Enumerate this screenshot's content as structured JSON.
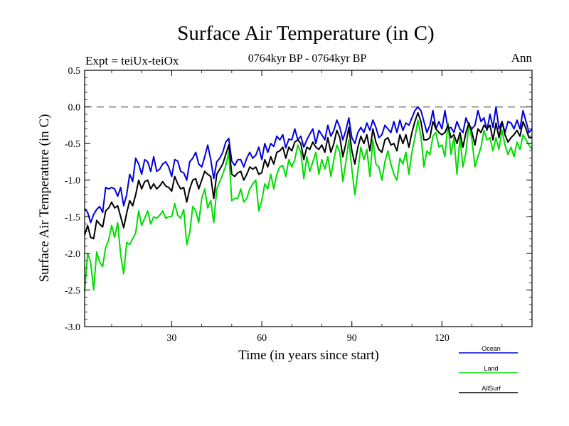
{
  "chart_data": {
    "type": "line",
    "title": "Surface Air Temperature (in C)",
    "subtitle": "0764kyr BP - 0764kyr BP",
    "left_annotation": "Expt = teiUx-teiOx",
    "right_annotation": "Ann",
    "xlabel": "Time (in years since start)",
    "ylabel": "Surface Air Temperature (in C)",
    "xlim": [
      1,
      150
    ],
    "ylim": [
      -3.0,
      0.5
    ],
    "xticks": [
      30,
      60,
      90,
      120
    ],
    "xtick_labels": [
      "30",
      "60",
      "90",
      "120"
    ],
    "yticks": [
      0.5,
      0.0,
      -0.5,
      -1.0,
      -1.5,
      -2.0,
      -2.5,
      -3.0
    ],
    "ytick_labels": [
      "0.5",
      "0.0",
      "-0.5",
      "-1.0",
      "-1.5",
      "-2.0",
      "-2.5",
      "-3.0"
    ],
    "reference_line": 0.0,
    "legend_position": "bottom-right",
    "x": [
      1,
      2,
      3,
      4,
      5,
      6,
      7,
      8,
      9,
      10,
      11,
      12,
      13,
      14,
      15,
      16,
      17,
      18,
      19,
      20,
      21,
      22,
      23,
      24,
      25,
      26,
      27,
      28,
      29,
      30,
      31,
      32,
      33,
      34,
      35,
      36,
      37,
      38,
      39,
      40,
      41,
      42,
      43,
      44,
      45,
      46,
      47,
      48,
      49,
      50,
      51,
      52,
      53,
      54,
      55,
      56,
      57,
      58,
      59,
      60,
      61,
      62,
      63,
      64,
      65,
      66,
      67,
      68,
      69,
      70,
      71,
      72,
      73,
      74,
      75,
      76,
      77,
      78,
      79,
      80,
      81,
      82,
      83,
      84,
      85,
      86,
      87,
      88,
      89,
      90,
      91,
      92,
      93,
      94,
      95,
      96,
      97,
      98,
      99,
      100,
      101,
      102,
      103,
      104,
      105,
      106,
      107,
      108,
      109,
      110,
      111,
      112,
      113,
      114,
      115,
      116,
      117,
      118,
      119,
      120,
      121,
      122,
      123,
      124,
      125,
      126,
      127,
      128,
      129,
      130,
      131,
      132,
      133,
      134,
      135,
      136,
      137,
      138,
      139,
      140,
      141,
      142,
      143,
      144,
      145,
      146,
      147,
      148,
      149,
      150
    ],
    "series": [
      {
        "name": "Ocean",
        "color": "#0000dd",
        "values": [
          -1.39,
          -1.44,
          -1.58,
          -1.47,
          -1.4,
          -1.36,
          -1.44,
          -1.1,
          -1.12,
          -1.1,
          -1.12,
          -1.22,
          -1.1,
          -1.35,
          -1.2,
          -0.92,
          -1.02,
          -0.7,
          -0.78,
          -0.92,
          -0.72,
          -0.75,
          -0.88,
          -0.68,
          -0.88,
          -0.85,
          -0.78,
          -0.75,
          -0.82,
          -0.95,
          -0.72,
          -0.74,
          -0.88,
          -0.9,
          -1.0,
          -0.75,
          -0.7,
          -0.62,
          -0.78,
          -0.82,
          -0.68,
          -0.52,
          -0.72,
          -0.98,
          -0.75,
          -0.7,
          -0.62,
          -0.48,
          -0.43,
          -0.74,
          -0.8,
          -0.72,
          -0.72,
          -0.82,
          -0.7,
          -0.62,
          -0.7,
          -0.66,
          -0.55,
          -0.72,
          -0.5,
          -0.62,
          -0.5,
          -0.54,
          -0.4,
          -0.45,
          -0.38,
          -0.56,
          -0.44,
          -0.45,
          -0.3,
          -0.45,
          -0.4,
          -0.55,
          -0.45,
          -0.37,
          -0.3,
          -0.5,
          -0.32,
          -0.38,
          -0.45,
          -0.25,
          -0.4,
          -0.32,
          -0.18,
          -0.28,
          -0.45,
          -0.32,
          -0.15,
          -0.42,
          -0.5,
          -0.35,
          -0.28,
          -0.35,
          -0.22,
          -0.32,
          -0.18,
          -0.28,
          -0.42,
          -0.38,
          -0.25,
          -0.3,
          -0.35,
          -0.2,
          -0.35,
          -0.18,
          -0.32,
          -0.22,
          -0.25,
          -0.15,
          -0.05,
          0.0,
          -0.05,
          -0.2,
          -0.35,
          -0.25,
          -0.05,
          -0.3,
          -0.2,
          -0.3,
          -0.05,
          -0.3,
          -0.28,
          -0.35,
          -0.2,
          -0.3,
          -0.35,
          -0.15,
          -0.25,
          -0.3,
          -0.25,
          -0.05,
          -0.2,
          -0.15,
          -0.32,
          -0.1,
          -0.28,
          0.0,
          -0.3,
          -0.2,
          -0.35,
          -0.2,
          -0.22,
          -0.3,
          -0.18,
          -0.3,
          -0.05,
          -0.2,
          -0.35,
          -0.3
        ]
      },
      {
        "name": "Land",
        "color": "#00dd00",
        "values": [
          -2.52,
          -2.0,
          -2.12,
          -2.5,
          -1.98,
          -2.12,
          -2.18,
          -1.92,
          -1.82,
          -1.62,
          -1.78,
          -1.58,
          -2.02,
          -2.28,
          -1.85,
          -1.88,
          -1.8,
          -1.72,
          -1.42,
          -1.62,
          -1.52,
          -1.42,
          -1.6,
          -1.5,
          -1.52,
          -1.48,
          -1.42,
          -1.52,
          -1.5,
          -1.5,
          -1.32,
          -1.48,
          -1.52,
          -1.4,
          -1.88,
          -1.72,
          -1.36,
          -1.42,
          -1.58,
          -1.25,
          -1.12,
          -1.38,
          -1.28,
          -1.58,
          -1.12,
          -1.02,
          -0.92,
          -0.8,
          -0.62,
          -1.28,
          -1.25,
          -1.25,
          -1.12,
          -1.3,
          -1.25,
          -1.12,
          -1.05,
          -1.0,
          -1.42,
          -1.28,
          -1.05,
          -1.12,
          -0.92,
          -1.12,
          -0.92,
          -0.82,
          -0.8,
          -0.95,
          -0.72,
          -0.82,
          -0.72,
          -0.52,
          -0.62,
          -0.98,
          -0.68,
          -0.88,
          -0.75,
          -0.62,
          -0.92,
          -0.72,
          -0.85,
          -0.68,
          -0.95,
          -0.72,
          -0.52,
          -0.62,
          -1.02,
          -0.75,
          -0.45,
          -0.85,
          -1.2,
          -0.88,
          -0.55,
          -0.72,
          -0.58,
          -0.95,
          -0.45,
          -0.78,
          -0.82,
          -1.0,
          -0.75,
          -0.6,
          -0.78,
          -0.92,
          -1.0,
          -0.7,
          -0.78,
          -0.62,
          -0.92,
          -0.62,
          -0.42,
          -0.18,
          -0.4,
          -0.82,
          -0.6,
          -0.65,
          -0.4,
          -0.35,
          -0.55,
          -0.52,
          -0.68,
          -0.22,
          -0.65,
          -0.42,
          -0.92,
          -0.42,
          -0.82,
          -0.62,
          -0.22,
          -0.45,
          -0.82,
          -0.68,
          -0.55,
          -0.32,
          -0.45,
          -0.42,
          -0.6,
          -0.42,
          -0.58,
          -0.32,
          -0.52,
          -0.65,
          -0.55,
          -0.68,
          -0.48,
          -0.58,
          -0.38,
          -0.45,
          -0.52,
          -0.58
        ]
      },
      {
        "name": "AllSurf",
        "color": "#000000",
        "values": [
          -1.75,
          -1.62,
          -1.78,
          -1.8,
          -1.55,
          -1.6,
          -1.64,
          -1.42,
          -1.38,
          -1.3,
          -1.38,
          -1.35,
          -1.5,
          -1.65,
          -1.45,
          -1.28,
          -1.35,
          -1.2,
          -1.0,
          -1.12,
          -1.02,
          -1.0,
          -1.12,
          -1.05,
          -1.12,
          -1.08,
          -1.02,
          -1.08,
          -1.1,
          -1.15,
          -0.95,
          -1.05,
          -1.12,
          -1.1,
          -1.3,
          -1.12,
          -1.0,
          -0.98,
          -1.12,
          -1.0,
          -0.88,
          -0.92,
          -0.95,
          -1.25,
          -0.92,
          -0.85,
          -0.78,
          -0.65,
          -0.52,
          -0.92,
          -0.95,
          -0.9,
          -0.88,
          -1.0,
          -0.92,
          -0.82,
          -0.85,
          -0.82,
          -0.92,
          -0.9,
          -0.72,
          -0.82,
          -0.68,
          -0.78,
          -0.62,
          -0.6,
          -0.55,
          -0.7,
          -0.55,
          -0.6,
          -0.48,
          -0.45,
          -0.5,
          -0.72,
          -0.55,
          -0.58,
          -0.48,
          -0.55,
          -0.58,
          -0.52,
          -0.62,
          -0.42,
          -0.62,
          -0.5,
          -0.32,
          -0.42,
          -0.68,
          -0.5,
          -0.28,
          -0.6,
          -0.78,
          -0.55,
          -0.4,
          -0.5,
          -0.38,
          -0.6,
          -0.3,
          -0.48,
          -0.58,
          -0.62,
          -0.45,
          -0.42,
          -0.52,
          -0.5,
          -0.6,
          -0.38,
          -0.5,
          -0.38,
          -0.55,
          -0.35,
          -0.2,
          -0.08,
          -0.2,
          -0.45,
          -0.45,
          -0.42,
          -0.2,
          -0.3,
          -0.35,
          -0.38,
          -0.35,
          -0.25,
          -0.42,
          -0.38,
          -0.5,
          -0.35,
          -0.55,
          -0.35,
          -0.22,
          -0.35,
          -0.52,
          -0.3,
          -0.35,
          -0.25,
          -0.3,
          -0.25,
          -0.45,
          -0.22,
          -0.42,
          -0.2,
          -0.38,
          -0.48,
          -0.42,
          -0.38,
          -0.32,
          -0.4,
          -0.2,
          -0.3,
          -0.42,
          -0.42
        ]
      }
    ]
  }
}
